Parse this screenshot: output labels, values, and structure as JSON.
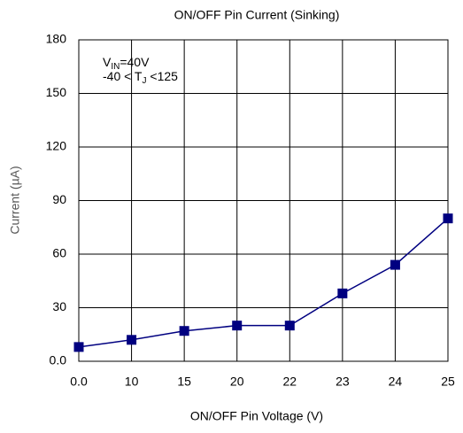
{
  "chart_data": {
    "type": "line",
    "title": "ON/OFF Pin Current (Sinking)",
    "x_label": "ON/OFF Pin Voltage (V)",
    "y_label": "Current (µA)",
    "categories": [
      "0.0",
      "10",
      "15",
      "20",
      "22",
      "23",
      "24",
      "25"
    ],
    "series": [
      {
        "name": "Current",
        "color": "#000080",
        "values": [
          8,
          12,
          17,
          20,
          20,
          38,
          54,
          80
        ]
      }
    ],
    "ylim": [
      0,
      180
    ],
    "yticks": [
      {
        "value": 0,
        "label": "0.0"
      },
      30,
      60,
      90,
      120,
      150,
      180
    ],
    "grid": true,
    "annotations": [
      {
        "text": "V",
        "sub": "IN",
        "rest": "=40V"
      },
      {
        "text": "-40   < T",
        "sub": "J",
        "rest": " <125"
      }
    ]
  }
}
